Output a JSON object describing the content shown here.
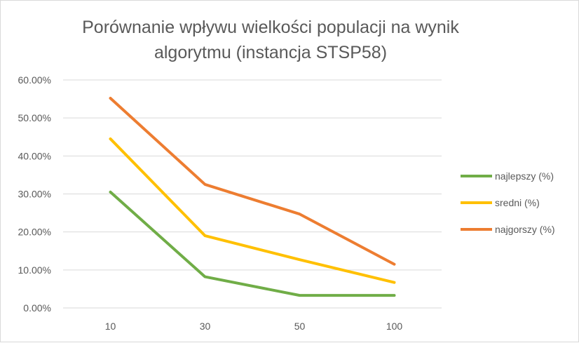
{
  "chart_data": {
    "type": "line",
    "title": "Porównanie wpływu wielkości populacji na wynik algorytmu (instancja STSP58)",
    "categories": [
      "10",
      "30",
      "50",
      "100"
    ],
    "series": [
      {
        "name": "najlepszy (%)",
        "color": "#70ad47",
        "values": [
          0.305,
          0.082,
          0.033,
          0.033
        ]
      },
      {
        "name": "sredni (%)",
        "color": "#ffc000",
        "values": [
          0.445,
          0.19,
          0.127,
          0.067
        ]
      },
      {
        "name": "najgorszy (%)",
        "color": "#ed7d31",
        "values": [
          0.552,
          0.325,
          0.247,
          0.115
        ]
      }
    ],
    "ylim": [
      0,
      0.6
    ],
    "yticks": [
      "0.00%",
      "10.00%",
      "20.00%",
      "30.00%",
      "40.00%",
      "50.00%",
      "60.00%"
    ],
    "grid": true,
    "legend_position": "right"
  }
}
